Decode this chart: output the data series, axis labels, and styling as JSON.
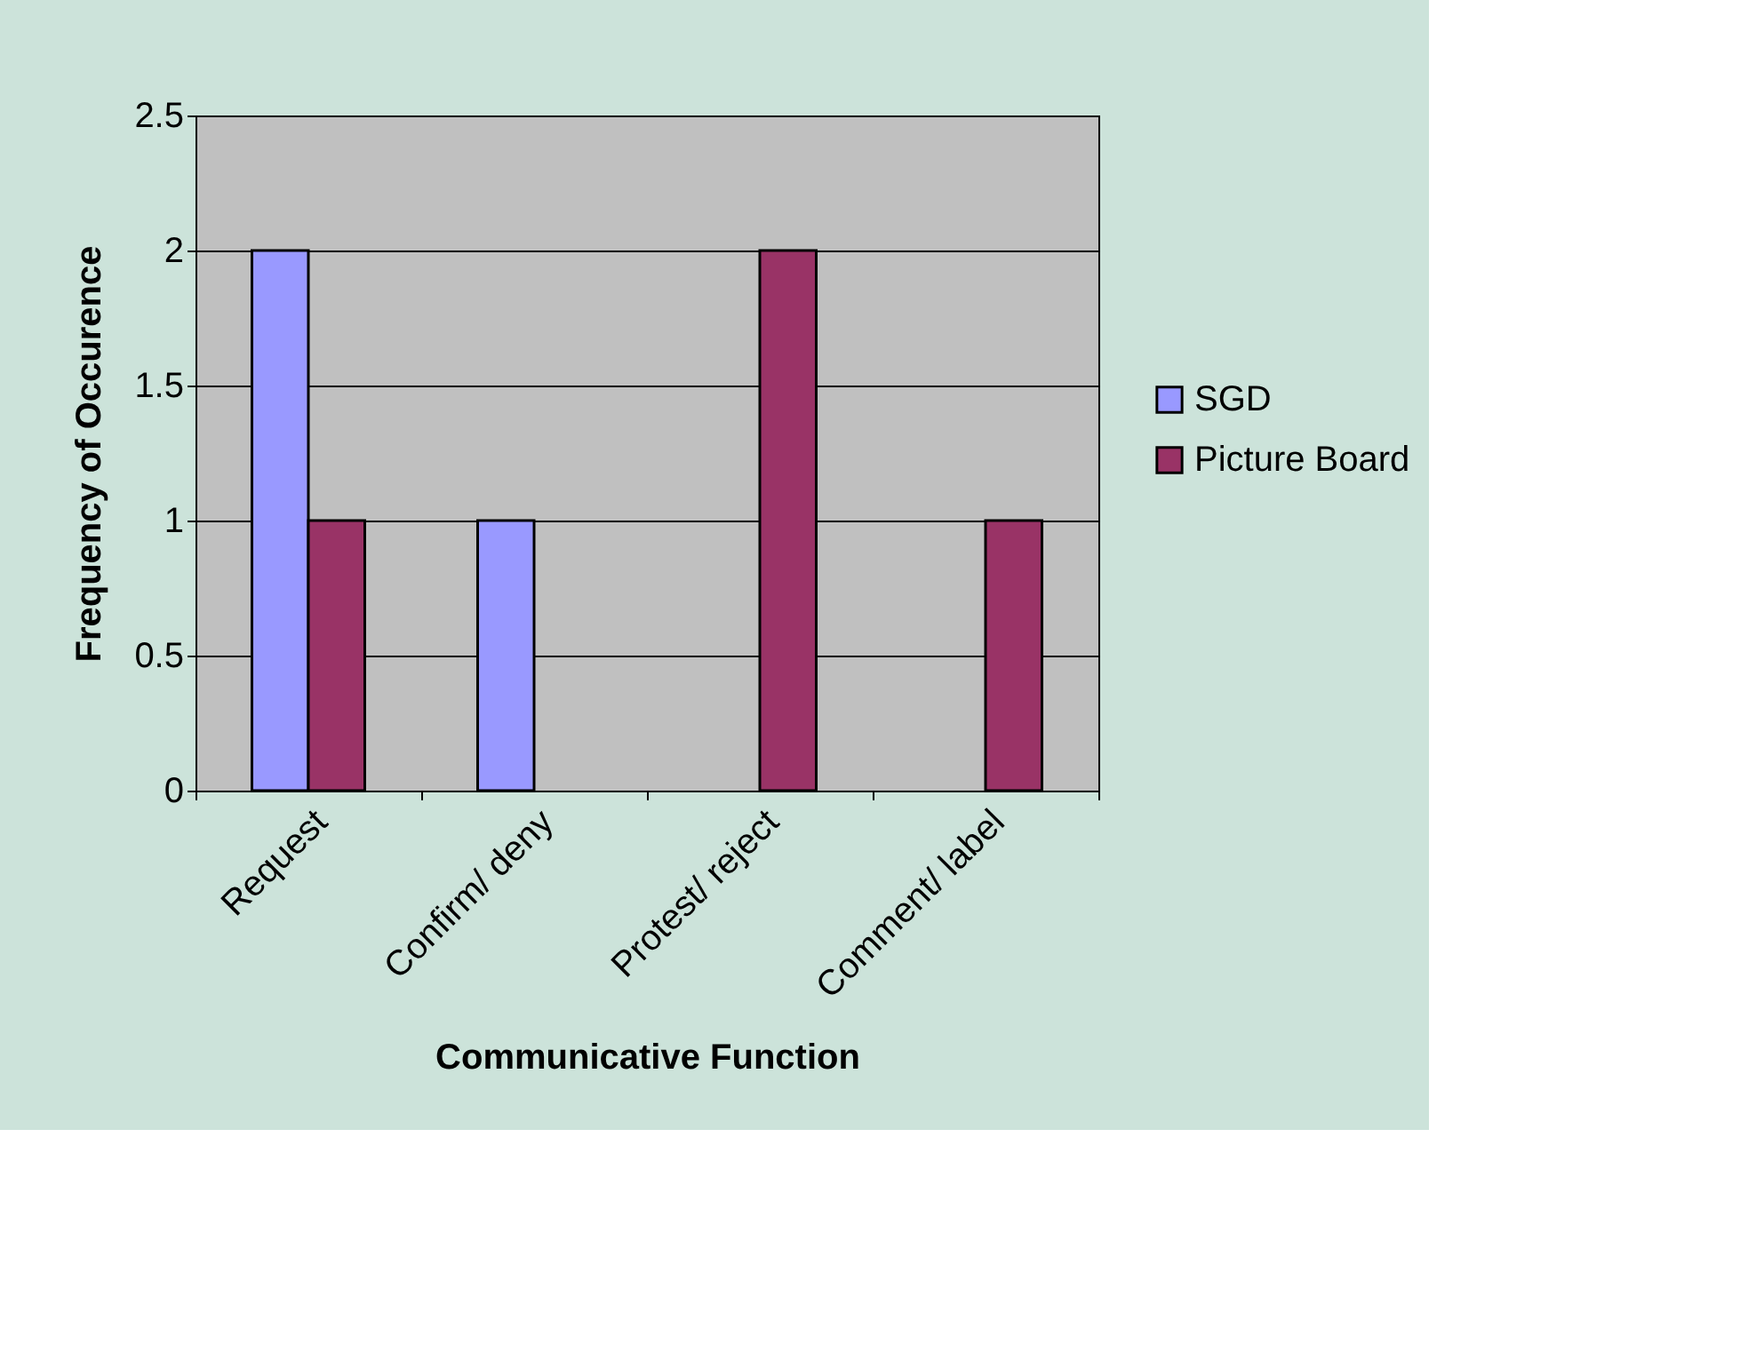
{
  "chart_data": {
    "type": "bar",
    "xlabel": "Communicative Function",
    "ylabel": "Frequency of Occurence",
    "categories": [
      "Request",
      "Confirm/ deny",
      "Protest/ reject",
      "Comment/ label"
    ],
    "series": [
      {
        "name": "SGD",
        "color": "#9999ff",
        "values": [
          2,
          1,
          null,
          null
        ]
      },
      {
        "name": "Picture Board",
        "color": "#993366",
        "values": [
          1,
          null,
          2,
          1
        ]
      }
    ],
    "ylim": [
      0,
      2.5
    ],
    "yticks": [
      0,
      0.5,
      1,
      1.5,
      2,
      2.5
    ],
    "grid": "y",
    "legend": "right"
  }
}
